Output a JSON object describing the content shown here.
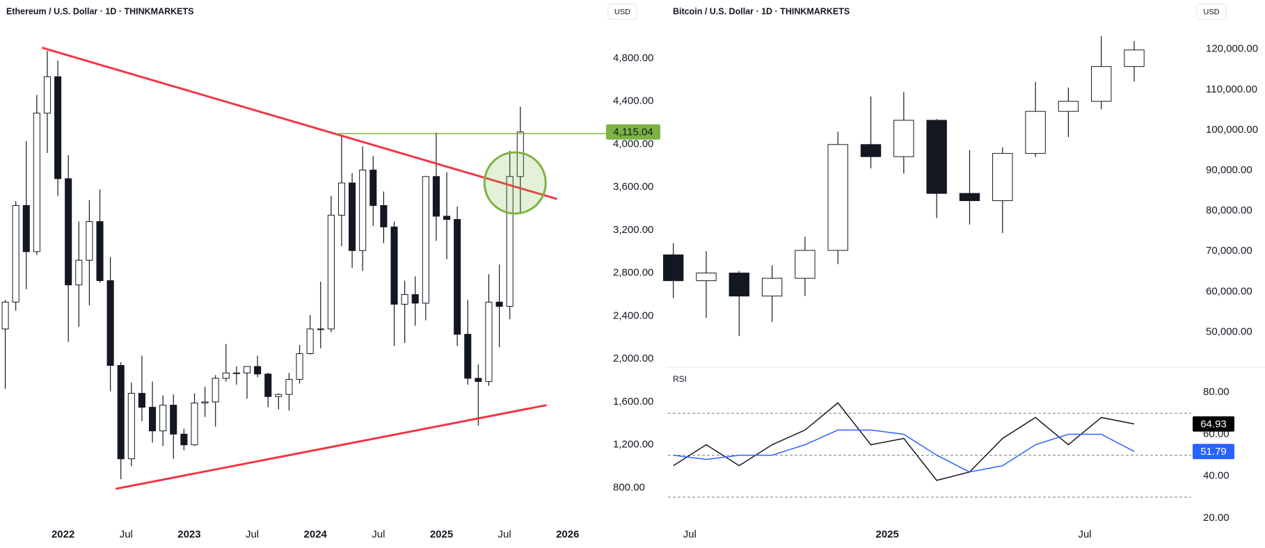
{
  "chart_data": [
    {
      "type": "candlestick",
      "title": "Ethereum / U.S. Dollar · 1D · THINKMARKETS",
      "currency": "USD",
      "x": [
        "2021-07",
        "2021-08",
        "2021-09",
        "2021-10",
        "2021-11",
        "2021-12",
        "2022-01",
        "2022-02",
        "2022-03",
        "2022-04",
        "2022-05",
        "2022-06",
        "2022-07",
        "2022-08",
        "2022-09",
        "2022-10",
        "2022-11",
        "2022-12",
        "2023-01",
        "2023-02",
        "2023-03",
        "2023-04",
        "2023-05",
        "2023-06",
        "2023-07",
        "2023-08",
        "2023-09",
        "2023-10",
        "2023-11",
        "2023-12",
        "2024-01",
        "2024-02",
        "2024-03",
        "2024-04",
        "2024-05",
        "2024-06",
        "2024-07",
        "2024-08",
        "2024-09",
        "2024-10",
        "2024-11",
        "2024-12",
        "2025-01",
        "2025-02",
        "2025-03",
        "2025-04",
        "2025-05",
        "2025-06",
        "2025-07",
        "2025-08"
      ],
      "open": [
        2280,
        2530,
        3430,
        3000,
        4290,
        4630,
        3680,
        2690,
        2920,
        3280,
        2730,
        1940,
        1070,
        1680,
        1550,
        1330,
        1570,
        1300,
        1200,
        1590,
        1600,
        1820,
        1870,
        1870,
        1930,
        1860,
        1650,
        1670,
        1810,
        2050,
        2280,
        2280,
        3340,
        3640,
        3010,
        3760,
        3430,
        3230,
        2510,
        2600,
        2520,
        3700,
        3330,
        3300,
        2230,
        1820,
        1790,
        2530,
        2490,
        3700
      ],
      "high": [
        2550,
        3470,
        4030,
        4460,
        4870,
        4780,
        3900,
        3280,
        3480,
        3580,
        2950,
        1970,
        1780,
        2030,
        1790,
        1660,
        1670,
        1350,
        1680,
        1740,
        1850,
        2140,
        1930,
        1930,
        2030,
        1870,
        1680,
        1870,
        2130,
        2410,
        2720,
        3520,
        4090,
        3730,
        3980,
        3890,
        3560,
        3280,
        2730,
        2770,
        3680,
        4110,
        3740,
        3420,
        2550,
        1950,
        2790,
        2880,
        3940,
        4350
      ],
      "low": [
        1720,
        2450,
        2650,
        2970,
        3920,
        3520,
        2160,
        2300,
        2500,
        2710,
        1700,
        880,
        1000,
        1420,
        1220,
        1190,
        1070,
        1150,
        1190,
        1460,
        1370,
        1790,
        1760,
        1630,
        1830,
        1550,
        1530,
        1520,
        1770,
        2040,
        2100,
        2250,
        3050,
        2850,
        2820,
        3240,
        3080,
        2120,
        2150,
        2310,
        2360,
        3100,
        2930,
        2120,
        1760,
        1380,
        1750,
        2110,
        2370,
        3350
      ],
      "close": [
        2530,
        3430,
        3000,
        4290,
        4630,
        3680,
        2690,
        2920,
        3280,
        2730,
        1940,
        1070,
        1680,
        1550,
        1330,
        1570,
        1300,
        1200,
        1590,
        1600,
        1820,
        1870,
        1870,
        1930,
        1860,
        1650,
        1670,
        1810,
        2050,
        2280,
        2280,
        3340,
        3640,
        3010,
        3760,
        3430,
        3230,
        2510,
        2600,
        2520,
        3700,
        3330,
        3300,
        2230,
        1820,
        1790,
        2530,
        2490,
        3700,
        4115.04
      ],
      "last_price": {
        "value": 4115.04,
        "label": "4,115.04"
      },
      "xlim": [
        "2021-07",
        "2026-03"
      ],
      "xticks": [
        {
          "value": "2022-01",
          "label": "2022"
        },
        {
          "value": "2022-07",
          "label": "Jul"
        },
        {
          "value": "2023-01",
          "label": "2023"
        },
        {
          "value": "2023-07",
          "label": "Jul"
        },
        {
          "value": "2024-01",
          "label": "2024"
        },
        {
          "value": "2024-07",
          "label": "Jul"
        },
        {
          "value": "2025-01",
          "label": "2025"
        },
        {
          "value": "2025-07",
          "label": "Jul"
        },
        {
          "value": "2026-01",
          "label": "2026"
        }
      ],
      "ylim": [
        550,
        5150
      ],
      "yticks": [
        {
          "value": 800,
          "label": "800.00"
        },
        {
          "value": 1200,
          "label": "1,200.00"
        },
        {
          "value": 1600,
          "label": "1,600.00"
        },
        {
          "value": 2000,
          "label": "2,000.00"
        },
        {
          "value": 2400,
          "label": "2,400.00"
        },
        {
          "value": 2800,
          "label": "2,800.00"
        },
        {
          "value": 3200,
          "label": "3,200.00"
        },
        {
          "value": 3600,
          "label": "3,600.00"
        },
        {
          "value": 4000,
          "label": "4,000.00"
        },
        {
          "value": 4400,
          "label": "4,400.00"
        },
        {
          "value": 4800,
          "label": "4,800.00"
        }
      ],
      "grid": false,
      "trendlines": [
        {
          "color": "#f23645",
          "x": [
            "2021-11",
            "2025-12"
          ],
          "y": [
            4900,
            3490
          ]
        },
        {
          "color": "#f23645",
          "x": [
            "2022-06",
            "2025-11"
          ],
          "y": [
            790,
            1570
          ]
        }
      ],
      "hline": {
        "value": 4100,
        "from": "2024-03",
        "color": "#7cb342"
      },
      "circle": {
        "x": "2025-08",
        "y": 3640,
        "color": "#7cb342"
      }
    },
    {
      "type": "candlestick",
      "title": "Bitcoin / U.S. Dollar · 1D · THINKMARKETS",
      "currency": "USD",
      "x": [
        "2024-06",
        "2024-07",
        "2024-08",
        "2024-09",
        "2024-10",
        "2024-11",
        "2024-12",
        "2025-01",
        "2025-02",
        "2025-03",
        "2025-04",
        "2025-05",
        "2025-06",
        "2025-07",
        "2025-08"
      ],
      "open": [
        69100,
        62700,
        64600,
        58900,
        63300,
        70200,
        96400,
        93400,
        102400,
        84300,
        82500,
        94200,
        104600,
        107100,
        115700
      ],
      "high": [
        72000,
        70000,
        65100,
        66500,
        73600,
        99600,
        108300,
        109400,
        102700,
        95000,
        95700,
        111900,
        110500,
        123200,
        122000
      ],
      "low": [
        58400,
        53500,
        49000,
        52500,
        58900,
        66800,
        90500,
        89200,
        78200,
        76600,
        74500,
        93300,
        98200,
        105100,
        112000
      ],
      "close": [
        62700,
        64600,
        58900,
        63300,
        70200,
        96400,
        93400,
        102400,
        84300,
        82500,
        94200,
        104600,
        107100,
        115700,
        119800
      ],
      "xlim": [
        "2024-06",
        "2025-10"
      ],
      "ylim": [
        41300,
        127000
      ],
      "yticks": [
        {
          "value": 50000,
          "label": "50,000.00"
        },
        {
          "value": 60000,
          "label": "60,000.00"
        },
        {
          "value": 70000,
          "label": "70,000.00"
        },
        {
          "value": 80000,
          "label": "80,000.00"
        },
        {
          "value": 90000,
          "label": "90,000.00"
        },
        {
          "value": 100000,
          "label": "100,000.00"
        },
        {
          "value": 110000,
          "label": "110,000.00"
        },
        {
          "value": 120000,
          "label": "120,000.00"
        }
      ],
      "grid": false
    },
    {
      "type": "line",
      "title": "RSI",
      "x": [
        "2024-06",
        "2024-07",
        "2024-08",
        "2024-09",
        "2024-10",
        "2024-11",
        "2024-12",
        "2025-01",
        "2025-02",
        "2025-03",
        "2025-04",
        "2025-05",
        "2025-06",
        "2025-07",
        "2025-08"
      ],
      "series": [
        {
          "name": "RSI",
          "color": "#131722",
          "badge": "#000000",
          "values": [
            45,
            55,
            45,
            55,
            62,
            75,
            55,
            58,
            38,
            42,
            58,
            68,
            55,
            68,
            64.93
          ]
        },
        {
          "name": "RSI-based MA",
          "color": "#2962ff",
          "badge": "#2962ff",
          "values": [
            50,
            48,
            50,
            50,
            55,
            62,
            62,
            60,
            50,
            42,
            45,
            55,
            60,
            60,
            51.79
          ]
        }
      ],
      "bands": [
        70,
        50,
        30
      ],
      "xlim": [
        "2024-06",
        "2025-10"
      ],
      "xticks": [
        {
          "value": "2024-07",
          "label": "Jul"
        },
        {
          "value": "2025-01",
          "label": "2025"
        },
        {
          "value": "2025-07",
          "label": "Jul"
        }
      ],
      "ylim": [
        20,
        92
      ],
      "yticks": [
        {
          "value": 20,
          "label": "20.00"
        },
        {
          "value": 40,
          "label": "40.00"
        },
        {
          "value": 60,
          "label": "60.00"
        },
        {
          "value": 80,
          "label": "80.00"
        }
      ],
      "grid": false
    }
  ]
}
